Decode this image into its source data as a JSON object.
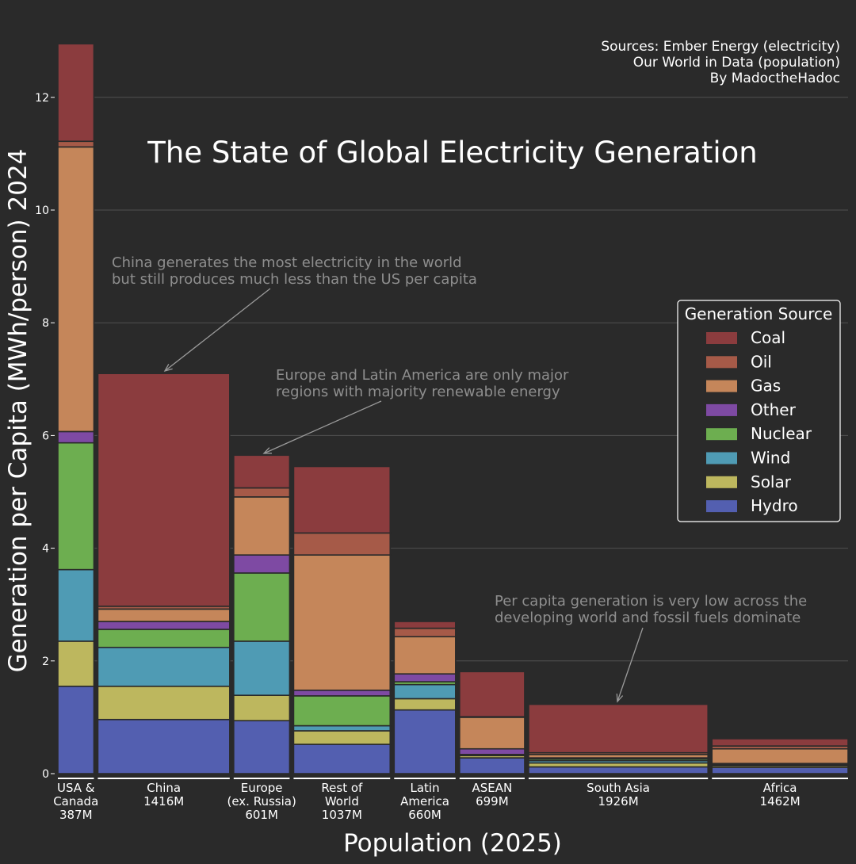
{
  "chart_data": {
    "type": "bar",
    "subtype": "variable-width stacked bar (marimekko)",
    "title": "The State of Global Electricity Generation",
    "xlabel": "Population (2025)",
    "ylabel": "Generation per Capita (MWh/person) 2024",
    "ylim": [
      0,
      13
    ],
    "yticks": [
      0,
      2,
      4,
      6,
      8,
      10,
      12
    ],
    "grid": true,
    "legend": {
      "title": "Generation Source",
      "placement": "right",
      "items": [
        "Coal",
        "Oil",
        "Gas",
        "Other",
        "Nuclear",
        "Wind",
        "Solar",
        "Hydro"
      ]
    },
    "sources": [
      "Sources: Ember Energy (electricity)",
      "Our World in Data (population)",
      "By MadoctheHadoc"
    ],
    "stack_order": [
      "Hydro",
      "Solar",
      "Wind",
      "Nuclear",
      "Other",
      "Gas",
      "Oil",
      "Coal"
    ],
    "colors": {
      "Coal": "#8b3c3e",
      "Oil": "#a65a48",
      "Gas": "#c5865a",
      "Other": "#7e4aa3",
      "Nuclear": "#6dae50",
      "Wind": "#4f9bb4",
      "Solar": "#bdb75e",
      "Hydro": "#535fb0"
    },
    "categories": [
      {
        "label_lines": [
          "USA &",
          "Canada",
          "387M"
        ],
        "population_m": 387,
        "values": {
          "Hydro": 1.55,
          "Solar": 0.8,
          "Wind": 1.27,
          "Nuclear": 2.25,
          "Other": 0.2,
          "Gas": 5.05,
          "Oil": 0.1,
          "Coal": 1.73
        }
      },
      {
        "label_lines": [
          "China",
          "1416M"
        ],
        "population_m": 1416,
        "values": {
          "Hydro": 0.96,
          "Solar": 0.59,
          "Wind": 0.69,
          "Nuclear": 0.32,
          "Other": 0.14,
          "Gas": 0.22,
          "Oil": 0.05,
          "Coal": 4.13
        }
      },
      {
        "label_lines": [
          "Europe",
          "(ex. Russia)",
          "601M"
        ],
        "population_m": 601,
        "values": {
          "Hydro": 0.94,
          "Solar": 0.45,
          "Wind": 0.96,
          "Nuclear": 1.21,
          "Other": 0.32,
          "Gas": 1.03,
          "Oil": 0.16,
          "Coal": 0.58
        }
      },
      {
        "label_lines": [
          "Rest of",
          "World",
          "1037M"
        ],
        "population_m": 1037,
        "values": {
          "Hydro": 0.52,
          "Solar": 0.24,
          "Wind": 0.09,
          "Nuclear": 0.53,
          "Other": 0.1,
          "Gas": 2.4,
          "Oil": 0.39,
          "Coal": 1.18
        }
      },
      {
        "label_lines": [
          "Latin",
          "America",
          "660M"
        ],
        "population_m": 660,
        "values": {
          "Hydro": 1.13,
          "Solar": 0.2,
          "Wind": 0.25,
          "Nuclear": 0.05,
          "Other": 0.14,
          "Gas": 0.66,
          "Oil": 0.15,
          "Coal": 0.12
        }
      },
      {
        "label_lines": [
          "ASEAN",
          "699M"
        ],
        "population_m": 699,
        "values": {
          "Hydro": 0.28,
          "Solar": 0.04,
          "Wind": 0.02,
          "Nuclear": 0.0,
          "Other": 0.1,
          "Gas": 0.56,
          "Oil": 0.01,
          "Coal": 0.8
        }
      },
      {
        "label_lines": [
          "South Asia",
          "1926M"
        ],
        "population_m": 1926,
        "values": {
          "Hydro": 0.12,
          "Solar": 0.07,
          "Wind": 0.04,
          "Nuclear": 0.03,
          "Other": 0.02,
          "Gas": 0.06,
          "Oil": 0.03,
          "Coal": 0.86
        }
      },
      {
        "label_lines": [
          "Africa",
          "1462M"
        ],
        "population_m": 1462,
        "values": {
          "Hydro": 0.11,
          "Solar": 0.03,
          "Wind": 0.02,
          "Nuclear": 0.01,
          "Other": 0.01,
          "Gas": 0.26,
          "Oil": 0.05,
          "Coal": 0.13
        }
      }
    ],
    "annotations": [
      {
        "lines": [
          "China generates the most electricity in the world",
          "but still produces much less than the US per capita"
        ],
        "target": "China"
      },
      {
        "lines": [
          "Europe and Latin America are only major",
          "regions with majority renewable energy"
        ],
        "target": "Europe"
      },
      {
        "lines": [
          "Per capita generation is very low across the",
          "developing world and fossil fuels dominate"
        ],
        "target": "South Asia"
      }
    ]
  }
}
